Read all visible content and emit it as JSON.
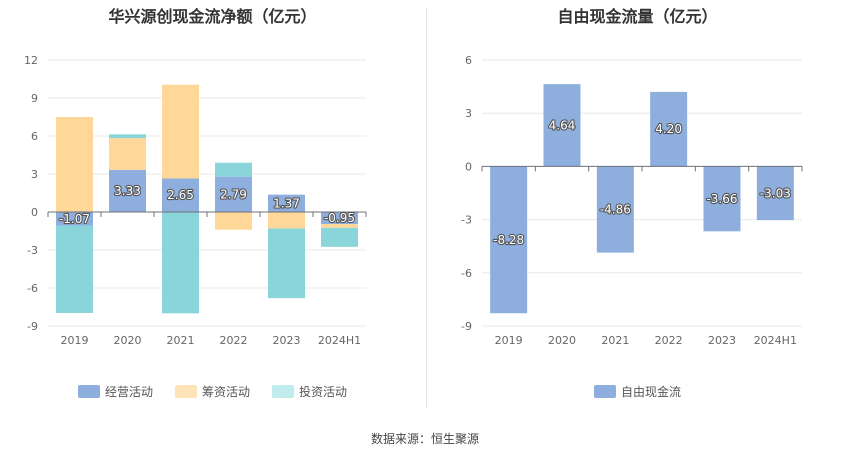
{
  "source_label": "数据来源：恒生聚源",
  "chart_data": [
    {
      "type": "bar",
      "stacked": true,
      "title": "华兴源创现金流净额（亿元）",
      "categories": [
        "2019",
        "2020",
        "2021",
        "2022",
        "2023",
        "2024H1"
      ],
      "yticks": [
        12,
        9,
        6,
        3,
        0,
        -3,
        -6,
        -9
      ],
      "ylim": [
        -9,
        12
      ],
      "series": [
        {
          "name": "经营活动",
          "color": "#8eaedd",
          "values": [
            -1.07,
            3.33,
            2.65,
            2.79,
            1.37,
            -0.95
          ],
          "show_labels": true
        },
        {
          "name": "筹资活动",
          "color": "#ffd899",
          "values": [
            7.5,
            2.5,
            7.4,
            -1.4,
            -1.3,
            -0.3
          ]
        },
        {
          "name": "投资活动",
          "color": "#8ad5da",
          "values": [
            -6.9,
            0.3,
            -8.0,
            1.1,
            -5.5,
            -1.5
          ]
        }
      ],
      "legend_swatch_colors": [
        "#8eaedd",
        "#ffe3b8",
        "#c0ecee"
      ],
      "legend_position": "bottom-center"
    },
    {
      "type": "bar",
      "title": "自由现金流量（亿元）",
      "categories": [
        "2019",
        "2020",
        "2021",
        "2022",
        "2023",
        "2024H1"
      ],
      "yticks": [
        6,
        3,
        0,
        -3,
        -6,
        -9
      ],
      "ylim": [
        -9,
        6
      ],
      "series": [
        {
          "name": "自由现金流",
          "color": "#8eaedd",
          "values": [
            -8.28,
            4.64,
            -4.86,
            4.2,
            -3.66,
            -3.03
          ],
          "labels": [
            "-8.28",
            "4.64",
            "-4.86",
            "4.20",
            "-3.66",
            "-3.03"
          ],
          "show_labels": true
        }
      ],
      "legend_swatch_colors": [
        "#8eaedd"
      ],
      "legend_position": "bottom-center"
    }
  ]
}
